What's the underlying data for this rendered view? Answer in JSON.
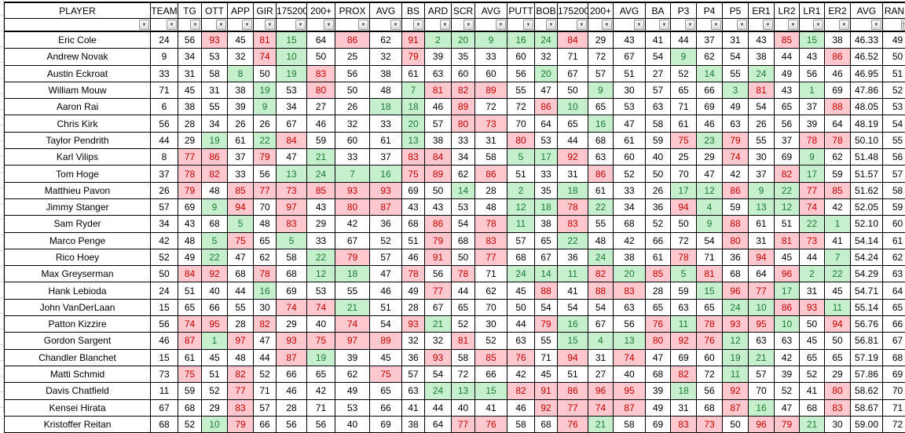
{
  "colors": {
    "good_bg": "#C6EFCE",
    "good_text": "#1E7B34",
    "bad_bg": "#FFC7CE",
    "bad_text": "#C00000",
    "grid": "#000000",
    "cell_bg": "#FFFFFF"
  },
  "table": {
    "columns": [
      "PLAYER",
      "TEAM",
      "TG",
      "OTT",
      "APP",
      "GIR",
      "175200",
      "200+",
      "PROX",
      "AVG",
      "BS",
      "ARD",
      "SCR",
      "AVG",
      "PUTT",
      "BOB",
      "175200",
      "200+",
      "AVG",
      "BA",
      "P3",
      "P4",
      "P5",
      "ER1",
      "LR2",
      "LR1",
      "ER2",
      "AVG",
      "RANK"
    ],
    "filter_row": {
      "dropdown_icon": "▼",
      "rank_icon": "sort-ascending-filter"
    },
    "rows": [
      {
        "player": "Eric Cole",
        "values": [
          24,
          56,
          93,
          45,
          81,
          15,
          64,
          86,
          62,
          91,
          2,
          20,
          9,
          16,
          24,
          84,
          29,
          43,
          41,
          44,
          37,
          31,
          43,
          85,
          15,
          38,
          "46.33",
          49
        ],
        "colors": "..r.rg.r.rgggggr.......rg..."
      },
      {
        "player": "Andrew Novak",
        "values": [
          9,
          34,
          53,
          32,
          74,
          10,
          50,
          25,
          32,
          79,
          39,
          35,
          33,
          60,
          32,
          71,
          72,
          67,
          54,
          9,
          62,
          54,
          38,
          44,
          43,
          86,
          "46.52",
          50
        ],
        "colors": "....rg...r.........g.....r.."
      },
      {
        "player": "Austin Eckroat",
        "values": [
          33,
          31,
          58,
          8,
          50,
          19,
          83,
          56,
          38,
          61,
          63,
          60,
          60,
          56,
          20,
          67,
          57,
          51,
          27,
          52,
          14,
          55,
          24,
          49,
          56,
          46,
          "46.95",
          51
        ],
        "colors": "...g.gr.......g.....g.g....."
      },
      {
        "player": "William Mouw",
        "values": [
          71,
          45,
          31,
          38,
          19,
          53,
          80,
          50,
          48,
          7,
          81,
          82,
          89,
          55,
          47,
          50,
          9,
          30,
          57,
          65,
          66,
          3,
          81,
          43,
          1,
          69,
          "47.86",
          52
        ],
        "colors": "....g.r..grrr...g....gr.g..."
      },
      {
        "player": "Aaron Rai",
        "values": [
          6,
          38,
          55,
          39,
          9,
          34,
          27,
          26,
          18,
          18,
          46,
          89,
          72,
          72,
          86,
          10,
          65,
          53,
          63,
          71,
          69,
          49,
          54,
          65,
          37,
          88,
          "48.05",
          53
        ],
        "colors": "....g...gg.r..rg.........r.."
      },
      {
        "player": "Chris Kirk",
        "values": [
          56,
          28,
          34,
          26,
          26,
          67,
          46,
          32,
          33,
          20,
          57,
          80,
          73,
          70,
          64,
          65,
          16,
          47,
          58,
          61,
          46,
          63,
          26,
          56,
          39,
          64,
          "48.19",
          54
        ],
        "colors": ".........g.rr...g..........."
      },
      {
        "player": "Taylor Pendrith",
        "values": [
          44,
          29,
          19,
          61,
          22,
          84,
          59,
          60,
          61,
          13,
          38,
          33,
          31,
          80,
          53,
          44,
          68,
          61,
          59,
          75,
          23,
          79,
          55,
          37,
          78,
          78,
          "50.10",
          55
        ],
        "colors": "..g.gr...g...r.....rgr..rr.."
      },
      {
        "player": "Karl Vilips",
        "values": [
          8,
          77,
          86,
          37,
          79,
          47,
          21,
          33,
          37,
          83,
          84,
          34,
          58,
          5,
          17,
          92,
          63,
          60,
          40,
          25,
          29,
          74,
          30,
          69,
          9,
          62,
          "51.48",
          56
        ],
        "colors": ".rr.r.g..rr..ggr.....r..g..."
      },
      {
        "player": "Tom Hoge",
        "values": [
          37,
          78,
          82,
          33,
          56,
          13,
          24,
          7,
          16,
          75,
          89,
          62,
          86,
          51,
          33,
          31,
          86,
          52,
          50,
          70,
          47,
          42,
          37,
          82,
          17,
          59,
          "51.57",
          57
        ],
        "colors": ".rr..ggggrr.r...r......rg..."
      },
      {
        "player": "Matthieu Pavon",
        "values": [
          26,
          79,
          48,
          85,
          77,
          73,
          85,
          93,
          93,
          69,
          50,
          14,
          28,
          2,
          35,
          18,
          61,
          33,
          26,
          17,
          12,
          86,
          9,
          22,
          77,
          85,
          "51.62",
          58
        ],
        "colors": ".r.rrrrrr..g.g.g...ggrggrr.."
      },
      {
        "player": "Jimmy Stanger",
        "values": [
          57,
          69,
          9,
          94,
          70,
          97,
          43,
          80,
          87,
          43,
          43,
          53,
          48,
          12,
          18,
          78,
          22,
          34,
          36,
          94,
          4,
          59,
          13,
          12,
          74,
          42,
          "52.05",
          59
        ],
        "colors": "..gr.r.rr....ggrg..rg.ggr..."
      },
      {
        "player": "Sam Ryder",
        "values": [
          34,
          43,
          68,
          5,
          48,
          83,
          29,
          42,
          36,
          68,
          86,
          54,
          78,
          11,
          38,
          83,
          55,
          68,
          52,
          50,
          9,
          88,
          61,
          51,
          22,
          1,
          "52.10",
          60
        ],
        "colors": "...g.r....r.rg.r....gr..gg.."
      },
      {
        "player": "Marco Penge",
        "values": [
          42,
          48,
          5,
          75,
          65,
          5,
          33,
          67,
          52,
          51,
          79,
          68,
          83,
          57,
          65,
          22,
          48,
          42,
          66,
          72,
          54,
          80,
          31,
          81,
          73,
          41,
          "54.14",
          61
        ],
        "colors": "..gr.g....r.r..g.....r.rr..."
      },
      {
        "player": "Rico Hoey",
        "values": [
          52,
          49,
          22,
          47,
          62,
          58,
          22,
          79,
          57,
          46,
          91,
          50,
          77,
          68,
          67,
          36,
          24,
          38,
          61,
          78,
          71,
          36,
          94,
          45,
          44,
          7,
          "54.24",
          62
        ],
        "colors": "..g...gr..r.r...g..r..r..g.."
      },
      {
        "player": "Max Greyserman",
        "values": [
          50,
          84,
          92,
          68,
          78,
          68,
          12,
          18,
          47,
          78,
          56,
          78,
          71,
          24,
          14,
          11,
          82,
          20,
          85,
          5,
          81,
          68,
          64,
          96,
          2,
          22,
          "54.29",
          63
        ],
        "colors": ".rr.r.gg.r.r.gggrgrgr..rgg.."
      },
      {
        "player": "Hank Lebioda",
        "values": [
          24,
          51,
          40,
          44,
          16,
          69,
          53,
          55,
          46,
          49,
          77,
          44,
          62,
          45,
          88,
          41,
          88,
          83,
          28,
          59,
          15,
          96,
          77,
          17,
          31,
          45,
          "54.71",
          64
        ],
        "colors": "....g.....r...r.rr..grrg...."
      },
      {
        "player": "John VanDerLaan",
        "values": [
          15,
          65,
          66,
          55,
          30,
          74,
          74,
          21,
          51,
          28,
          67,
          65,
          70,
          50,
          54,
          54,
          54,
          63,
          65,
          63,
          65,
          24,
          10,
          86,
          93,
          11,
          "55.14",
          65
        ],
        "colors": ".....rrg.............ggrrg.."
      },
      {
        "player": "Patton Kizzire",
        "values": [
          56,
          74,
          95,
          28,
          82,
          29,
          40,
          74,
          54,
          93,
          21,
          52,
          30,
          44,
          79,
          16,
          67,
          56,
          76,
          11,
          78,
          93,
          95,
          10,
          50,
          94,
          "56.76",
          66
        ],
        "colors": ".rr.r..r.rg...rg..rgrrrg.r.."
      },
      {
        "player": "Gordon Sargent",
        "values": [
          46,
          87,
          1,
          97,
          47,
          93,
          75,
          97,
          89,
          32,
          32,
          81,
          52,
          63,
          55,
          15,
          4,
          13,
          80,
          92,
          76,
          12,
          63,
          63,
          45,
          50,
          "56.81",
          67
        ],
        "colors": ".rgr.rrrr..r...gggrrrg......"
      },
      {
        "player": "Chandler Blanchet",
        "values": [
          15,
          61,
          45,
          48,
          44,
          87,
          19,
          39,
          45,
          36,
          93,
          58,
          85,
          76,
          71,
          94,
          31,
          74,
          47,
          69,
          60,
          19,
          21,
          42,
          65,
          65,
          "57.19",
          68
        ],
        "colors": ".....rg...r.rr.r.r...gg....."
      },
      {
        "player": "Matti Schmid",
        "values": [
          73,
          75,
          51,
          82,
          52,
          66,
          65,
          62,
          75,
          57,
          54,
          72,
          66,
          42,
          45,
          51,
          27,
          40,
          68,
          82,
          72,
          11,
          57,
          39,
          52,
          29,
          "57.86",
          69
        ],
        "colors": ".r.r....r..........r.g......"
      },
      {
        "player": "Davis Chatfield",
        "values": [
          11,
          59,
          52,
          77,
          71,
          46,
          42,
          49,
          65,
          63,
          24,
          13,
          15,
          82,
          91,
          86,
          96,
          95,
          39,
          18,
          56,
          92,
          70,
          52,
          41,
          80,
          "58.62",
          70
        ],
        "colors": "...r......gggrrrrr.g.r...r.."
      },
      {
        "player": "Kensei Hirata",
        "values": [
          67,
          68,
          29,
          83,
          57,
          28,
          71,
          53,
          66,
          41,
          44,
          40,
          41,
          46,
          92,
          77,
          74,
          87,
          49,
          31,
          68,
          87,
          16,
          47,
          68,
          83,
          "58.67",
          71
        ],
        "colors": "...r..........rrrr...rg..r.."
      },
      {
        "player": "Kristoffer Reitan",
        "values": [
          68,
          52,
          10,
          79,
          66,
          56,
          56,
          40,
          69,
          38,
          64,
          77,
          76,
          58,
          68,
          76,
          21,
          58,
          69,
          83,
          73,
          50,
          96,
          79,
          21,
          30,
          "59.00",
          72
        ],
        "colors": "..gr.......rr..rg..rr.rrg..."
      }
    ]
  }
}
